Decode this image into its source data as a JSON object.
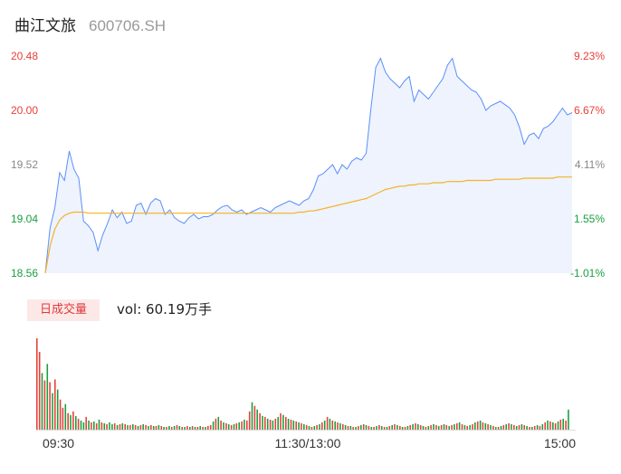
{
  "header": {
    "name": "曲江文旅",
    "code": "600706.SH"
  },
  "volume_panel": {
    "badge": "日成交量",
    "vol_label": "vol: 60.19万手"
  },
  "colors": {
    "price_line": "#5b8ff9",
    "avg_line": "#f5b226",
    "up": "#e8403a",
    "down": "#1a9f3c",
    "area_fill": "#eef3fd"
  },
  "chart_data": [
    {
      "type": "line",
      "series": [],
      "y_left_ticks": [
        "20.48",
        "20.00",
        "19.52",
        "19.04",
        "18.56"
      ],
      "y_right_ticks": [
        "9.23%",
        "6.67%",
        "4.11%",
        "1.55%",
        "-1.01%"
      ],
      "ylim": [
        18.56,
        20.48
      ],
      "price": [
        18.56,
        18.96,
        19.14,
        19.45,
        19.38,
        19.64,
        19.48,
        19.4,
        19.02,
        18.98,
        18.92,
        18.76,
        18.9,
        19.0,
        19.12,
        19.05,
        19.1,
        19.0,
        19.02,
        19.16,
        19.18,
        19.08,
        19.18,
        19.22,
        19.2,
        19.08,
        19.12,
        19.05,
        19.02,
        19.0,
        19.05,
        19.08,
        19.04,
        19.06,
        19.06,
        19.08,
        19.12,
        19.15,
        19.16,
        19.12,
        19.1,
        19.12,
        19.08,
        19.1,
        19.12,
        19.14,
        19.12,
        19.1,
        19.14,
        19.16,
        19.18,
        19.2,
        19.18,
        19.16,
        19.2,
        19.22,
        19.3,
        19.42,
        19.44,
        19.48,
        19.52,
        19.44,
        19.52,
        19.48,
        19.55,
        19.58,
        19.56,
        19.62,
        20.02,
        20.38,
        20.46,
        20.34,
        20.28,
        20.24,
        20.2,
        20.26,
        20.3,
        20.08,
        20.18,
        20.14,
        20.1,
        20.16,
        20.22,
        20.28,
        20.4,
        20.46,
        20.3,
        20.26,
        20.22,
        20.18,
        20.16,
        20.1,
        20.0,
        20.04,
        20.06,
        20.08,
        20.05,
        20.02,
        19.96,
        19.85,
        19.7,
        19.78,
        19.8,
        19.75,
        19.84,
        19.86,
        19.9,
        19.96,
        20.02,
        19.96,
        19.98
      ],
      "avg": [
        18.56,
        18.8,
        18.95,
        19.03,
        19.07,
        19.09,
        19.1,
        19.1,
        19.1,
        19.09,
        19.09,
        19.09,
        19.09,
        19.09,
        19.09,
        19.09,
        19.09,
        19.09,
        19.09,
        19.09,
        19.09,
        19.09,
        19.09,
        19.09,
        19.09,
        19.09,
        19.09,
        19.09,
        19.09,
        19.09,
        19.09,
        19.09,
        19.09,
        19.09,
        19.09,
        19.09,
        19.09,
        19.09,
        19.09,
        19.09,
        19.09,
        19.09,
        19.09,
        19.09,
        19.09,
        19.09,
        19.09,
        19.09,
        19.09,
        19.09,
        19.09,
        19.09,
        19.09,
        19.1,
        19.1,
        19.11,
        19.11,
        19.12,
        19.13,
        19.14,
        19.15,
        19.16,
        19.17,
        19.18,
        19.19,
        19.2,
        19.21,
        19.22,
        19.24,
        19.26,
        19.28,
        19.3,
        19.31,
        19.32,
        19.33,
        19.33,
        19.34,
        19.34,
        19.35,
        19.35,
        19.35,
        19.36,
        19.36,
        19.36,
        19.37,
        19.37,
        19.37,
        19.37,
        19.38,
        19.38,
        19.38,
        19.38,
        19.38,
        19.38,
        19.39,
        19.39,
        19.39,
        19.39,
        19.39,
        19.39,
        19.4,
        19.4,
        19.4,
        19.4,
        19.4,
        19.4,
        19.4,
        19.41,
        19.41,
        19.41,
        19.41
      ],
      "x_ticks": [
        "09:30",
        "11:30/13:00",
        "15:00"
      ]
    },
    {
      "type": "bar",
      "series": [],
      "volumes": [
        100,
        85,
        62,
        54,
        72,
        52,
        40,
        55,
        44,
        33,
        24,
        28,
        18,
        16,
        20,
        15,
        12,
        10,
        8,
        14,
        10,
        8,
        9,
        7,
        11,
        8,
        7,
        6,
        8,
        6,
        7,
        5,
        6,
        7,
        6,
        5,
        5,
        6,
        5,
        4,
        5,
        6,
        5,
        4,
        5,
        4,
        4,
        5,
        4,
        3,
        3,
        4,
        3,
        4,
        5,
        4,
        3,
        3,
        4,
        3,
        4,
        3,
        3,
        4,
        3,
        3,
        4,
        5,
        9,
        12,
        14,
        10,
        8,
        7,
        6,
        5,
        6,
        7,
        8,
        9,
        11,
        10,
        20,
        30,
        26,
        22,
        18,
        15,
        14,
        12,
        11,
        10,
        12,
        14,
        18,
        16,
        14,
        12,
        11,
        10,
        9,
        8,
        7,
        6,
        5,
        4,
        3,
        4,
        5,
        6,
        8,
        10,
        14,
        12,
        10,
        9,
        8,
        7,
        6,
        5,
        4,
        4,
        3,
        3,
        4,
        5,
        6,
        5,
        4,
        3,
        3,
        4,
        5,
        4,
        3,
        3,
        4,
        5,
        6,
        5,
        4,
        3,
        3,
        4,
        5,
        6,
        7,
        6,
        5,
        4,
        3,
        4,
        5,
        6,
        5,
        4,
        5,
        6,
        5,
        4,
        5,
        6,
        7,
        8,
        6,
        5,
        4,
        5,
        6,
        8,
        9,
        10,
        8,
        7,
        6,
        5,
        4,
        3,
        3,
        4,
        5,
        6,
        7,
        6,
        5,
        4,
        5,
        6,
        5,
        4,
        3,
        3,
        4,
        5,
        4,
        6,
        8,
        10,
        9,
        8,
        7,
        9,
        11,
        12,
        10,
        22
      ],
      "directions": [
        "r",
        "r",
        "g",
        "r",
        "g",
        "r",
        "g",
        "r",
        "g",
        "r",
        "r",
        "g",
        "r",
        "g",
        "r",
        "g",
        "r",
        "g",
        "g",
        "r",
        "g",
        "r",
        "g",
        "r",
        "g",
        "r",
        "g",
        "r",
        "g",
        "g",
        "r",
        "g",
        "r",
        "g",
        "r",
        "g",
        "r",
        "g",
        "r",
        "g",
        "r",
        "g",
        "r",
        "g",
        "r",
        "g",
        "r",
        "g",
        "r",
        "g",
        "r",
        "g",
        "r",
        "g",
        "r",
        "g",
        "r",
        "g",
        "r",
        "g",
        "r",
        "g",
        "r",
        "g",
        "r",
        "g",
        "r",
        "r",
        "g",
        "r",
        "g",
        "r",
        "g",
        "r",
        "g",
        "r",
        "g",
        "r",
        "g",
        "r",
        "g",
        "r",
        "r",
        "g",
        "r",
        "g",
        "r",
        "g",
        "r",
        "g",
        "r",
        "g",
        "r",
        "g",
        "r",
        "g",
        "r",
        "g",
        "r",
        "g",
        "r",
        "g",
        "r",
        "g",
        "r",
        "g",
        "r",
        "g",
        "r",
        "g",
        "r",
        "g",
        "r",
        "g",
        "r",
        "g",
        "r",
        "g",
        "r",
        "g",
        "r",
        "g",
        "r",
        "g",
        "r",
        "g",
        "r",
        "g",
        "r",
        "g",
        "r",
        "g",
        "r",
        "g",
        "r",
        "g",
        "r",
        "g",
        "r",
        "g",
        "r",
        "g",
        "r",
        "g",
        "r",
        "g",
        "r",
        "g",
        "r",
        "g",
        "r",
        "g",
        "r",
        "g",
        "r",
        "g",
        "r",
        "g",
        "r",
        "g",
        "r",
        "g",
        "r",
        "g",
        "r",
        "g",
        "r",
        "g",
        "r",
        "g",
        "r",
        "g",
        "r",
        "g",
        "r",
        "g",
        "r",
        "g",
        "r",
        "g",
        "r",
        "g",
        "r",
        "g",
        "r",
        "g",
        "r",
        "g",
        "r",
        "g",
        "r",
        "g",
        "r",
        "g",
        "r",
        "g",
        "r",
        "g",
        "r",
        "g",
        "r",
        "g",
        "r",
        "g",
        "r",
        "g",
        "r",
        "g",
        "r",
        "r"
      ]
    }
  ]
}
